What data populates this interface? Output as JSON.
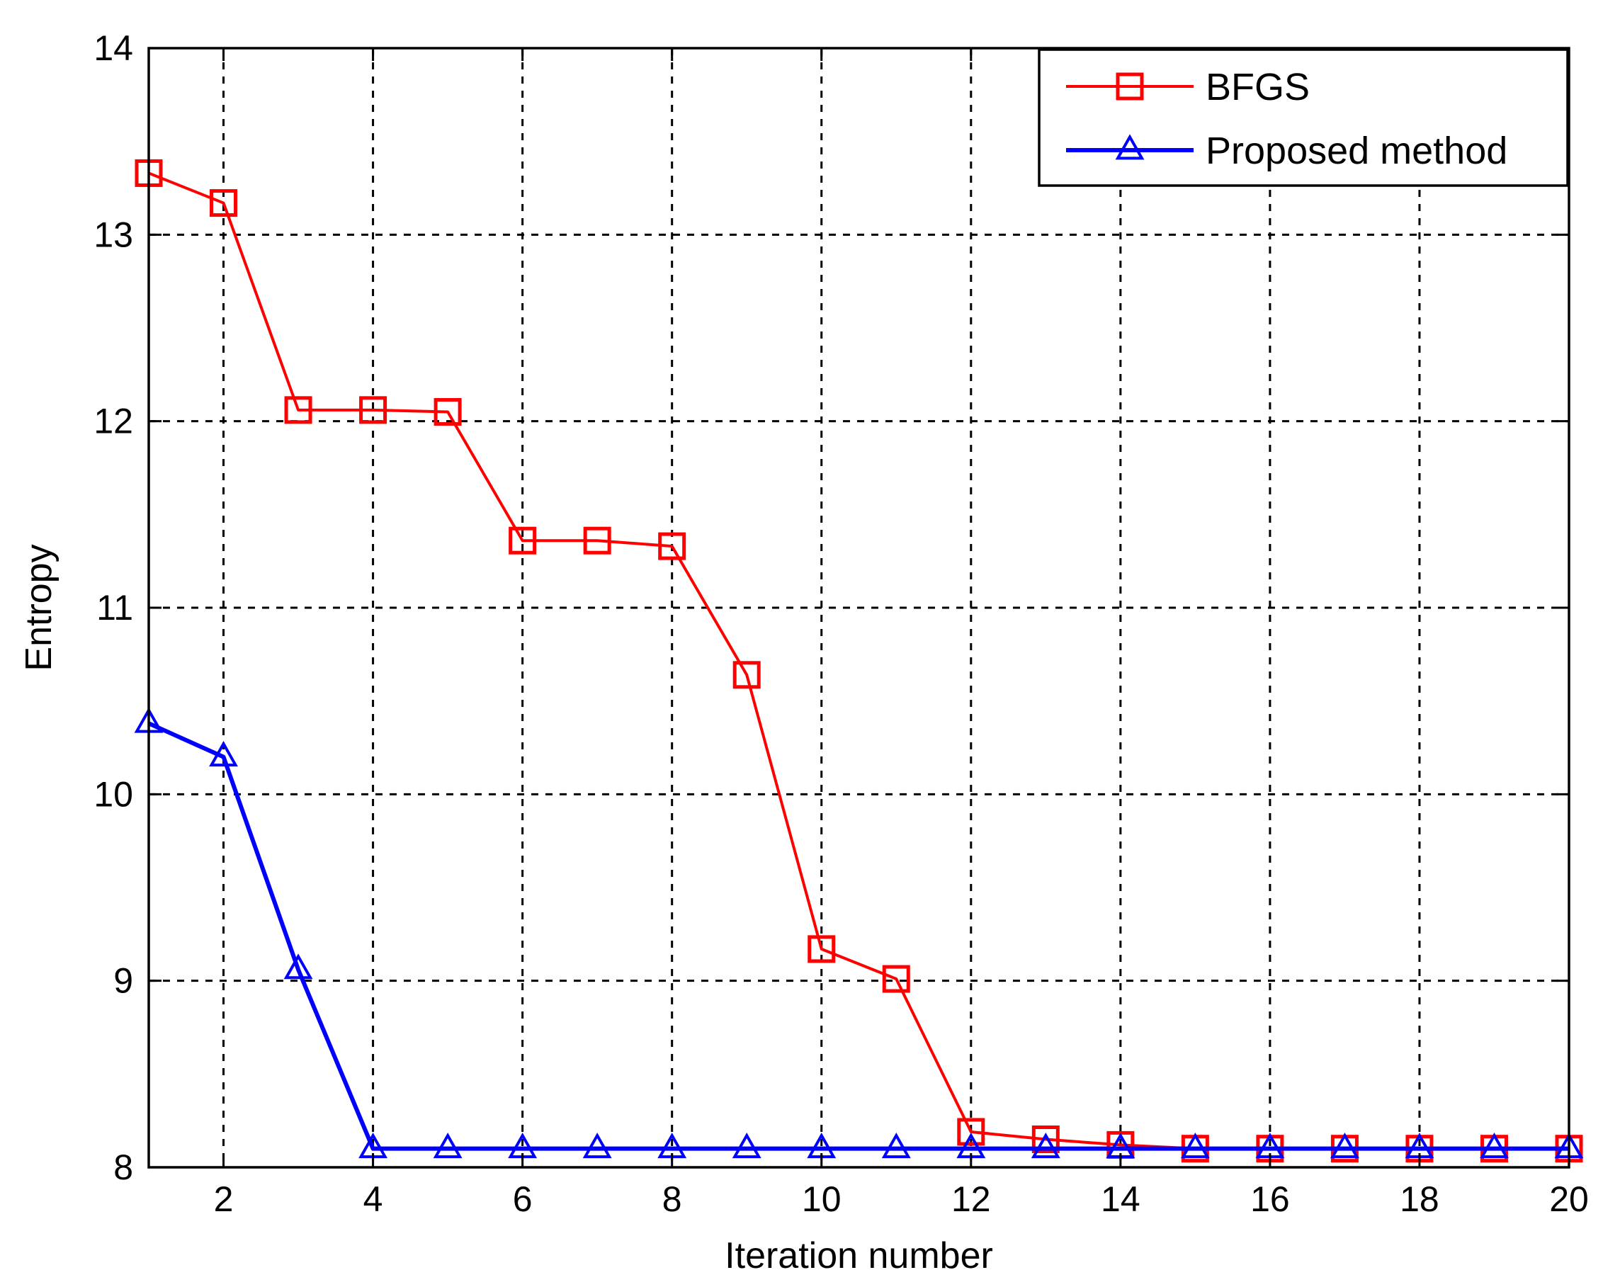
{
  "chart_data": {
    "type": "line",
    "title": "",
    "xlabel": "Iteration number",
    "ylabel": "Entropy",
    "xlim": [
      1,
      20
    ],
    "ylim": [
      8,
      14
    ],
    "xticks": [
      2,
      4,
      6,
      8,
      10,
      12,
      14,
      16,
      18,
      20
    ],
    "yticks": [
      8,
      9,
      10,
      11,
      12,
      13,
      14
    ],
    "grid": true,
    "legend_position": "top-right",
    "x": [
      1,
      2,
      3,
      4,
      5,
      6,
      7,
      8,
      9,
      10,
      11,
      12,
      13,
      14,
      15,
      16,
      17,
      18,
      19,
      20
    ],
    "series": [
      {
        "name": "BFGS",
        "color": "#ff0000",
        "marker": "square",
        "values": [
          13.33,
          13.17,
          12.06,
          12.06,
          12.05,
          11.36,
          11.36,
          11.33,
          10.64,
          9.17,
          9.01,
          8.19,
          8.15,
          8.12,
          8.1,
          8.1,
          8.1,
          8.1,
          8.1,
          8.1
        ]
      },
      {
        "name": "Proposed method",
        "color": "#0000ff",
        "marker": "triangle",
        "values": [
          10.38,
          10.2,
          9.06,
          8.1,
          8.1,
          8.1,
          8.1,
          8.1,
          8.1,
          8.1,
          8.1,
          8.1,
          8.1,
          8.1,
          8.1,
          8.1,
          8.1,
          8.1,
          8.1,
          8.1
        ]
      }
    ]
  }
}
